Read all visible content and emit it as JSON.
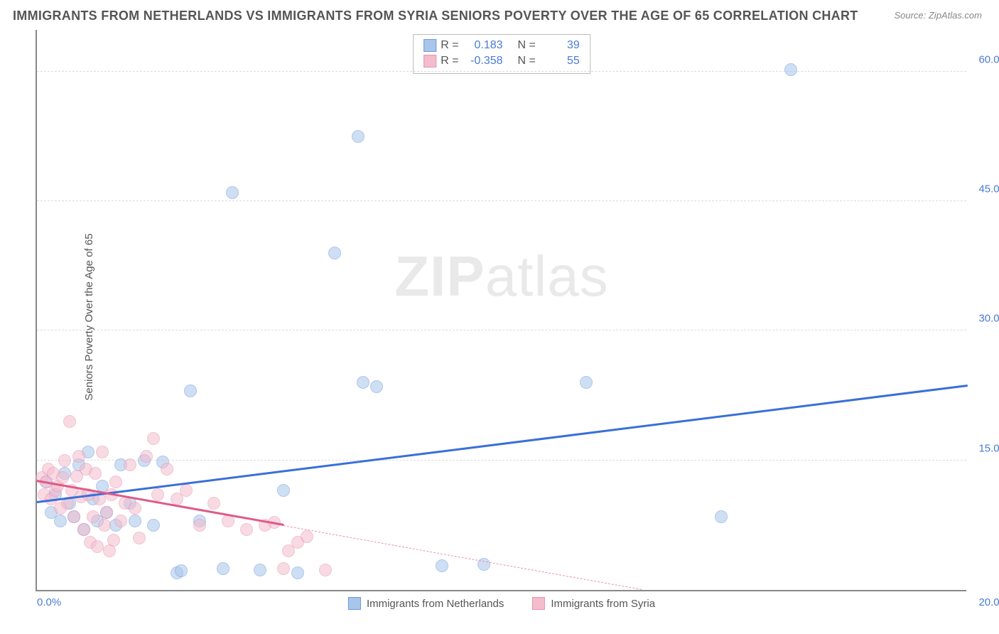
{
  "title": "IMMIGRANTS FROM NETHERLANDS VS IMMIGRANTS FROM SYRIA SENIORS POVERTY OVER THE AGE OF 65 CORRELATION CHART",
  "source_prefix": "Source: ",
  "source": "ZipAtlas.com",
  "ylabel": "Seniors Poverty Over the Age of 65",
  "watermark_bold": "ZIP",
  "watermark_rest": "atlas",
  "chart": {
    "type": "scatter",
    "xlim": [
      0,
      20
    ],
    "ylim": [
      0,
      65
    ],
    "yticks": [
      15,
      30,
      45,
      60
    ],
    "ytick_labels": [
      "15.0%",
      "30.0%",
      "45.0%",
      "60.0%"
    ],
    "xticks": [
      0,
      20
    ],
    "xtick_labels": [
      "0.0%",
      "20.0%"
    ],
    "background_color": "#ffffff",
    "grid_color": "#dddddd",
    "marker_radius": 9,
    "marker_opacity": 0.55,
    "trend_width": 3
  },
  "series": [
    {
      "name": "Immigrants from Netherlands",
      "color_fill": "#a8c5ea",
      "color_stroke": "#6b9be0",
      "trend_color": "#3a6fd8",
      "R": "0.183",
      "N": "39",
      "trend": {
        "x1": 0,
        "y1": 10.0,
        "x2": 20,
        "y2": 23.5
      },
      "points": [
        [
          0.2,
          12.5
        ],
        [
          0.3,
          9.0
        ],
        [
          0.4,
          11.0
        ],
        [
          0.5,
          8.0
        ],
        [
          0.6,
          13.5
        ],
        [
          0.7,
          10.0
        ],
        [
          0.8,
          8.5
        ],
        [
          0.9,
          14.5
        ],
        [
          1.0,
          7.0
        ],
        [
          1.1,
          16.0
        ],
        [
          1.2,
          10.5
        ],
        [
          1.3,
          8.0
        ],
        [
          1.4,
          12.0
        ],
        [
          1.5,
          9.0
        ],
        [
          1.7,
          7.5
        ],
        [
          1.8,
          14.5
        ],
        [
          2.0,
          10.0
        ],
        [
          2.1,
          8.0
        ],
        [
          2.3,
          15.0
        ],
        [
          2.5,
          7.5
        ],
        [
          2.7,
          14.8
        ],
        [
          3.0,
          2.0
        ],
        [
          3.1,
          2.2
        ],
        [
          3.3,
          23.0
        ],
        [
          3.5,
          8.0
        ],
        [
          4.0,
          2.5
        ],
        [
          4.2,
          46.0
        ],
        [
          4.8,
          2.3
        ],
        [
          5.3,
          11.5
        ],
        [
          5.6,
          2.0
        ],
        [
          6.4,
          39.0
        ],
        [
          6.9,
          52.5
        ],
        [
          7.0,
          24.0
        ],
        [
          7.3,
          23.5
        ],
        [
          8.7,
          2.8
        ],
        [
          9.6,
          3.0
        ],
        [
          11.8,
          24.0
        ],
        [
          14.7,
          8.5
        ],
        [
          16.2,
          60.2
        ]
      ]
    },
    {
      "name": "Immigrants from Syria",
      "color_fill": "#f4bccd",
      "color_stroke": "#e893b0",
      "trend_color": "#e05a88",
      "R": "-0.358",
      "N": "55",
      "trend_dashed_after_x": 5.3,
      "trend": {
        "x1": 0,
        "y1": 12.5,
        "x2": 13.0,
        "y2": 0.0
      },
      "points": [
        [
          0.1,
          13.0
        ],
        [
          0.15,
          11.0
        ],
        [
          0.2,
          12.5
        ],
        [
          0.25,
          14.0
        ],
        [
          0.3,
          10.5
        ],
        [
          0.35,
          13.5
        ],
        [
          0.4,
          11.5
        ],
        [
          0.45,
          12.0
        ],
        [
          0.5,
          9.5
        ],
        [
          0.55,
          13.0
        ],
        [
          0.6,
          15.0
        ],
        [
          0.65,
          10.0
        ],
        [
          0.7,
          19.5
        ],
        [
          0.75,
          11.5
        ],
        [
          0.8,
          8.5
        ],
        [
          0.85,
          13.2
        ],
        [
          0.9,
          15.5
        ],
        [
          0.95,
          10.8
        ],
        [
          1.0,
          7.0
        ],
        [
          1.05,
          14.0
        ],
        [
          1.1,
          11.0
        ],
        [
          1.15,
          5.5
        ],
        [
          1.2,
          8.5
        ],
        [
          1.25,
          13.5
        ],
        [
          1.3,
          5.0
        ],
        [
          1.35,
          10.5
        ],
        [
          1.4,
          16.0
        ],
        [
          1.45,
          7.5
        ],
        [
          1.5,
          9.0
        ],
        [
          1.55,
          4.5
        ],
        [
          1.6,
          11.0
        ],
        [
          1.65,
          5.8
        ],
        [
          1.7,
          12.5
        ],
        [
          1.8,
          8.0
        ],
        [
          1.9,
          10.0
        ],
        [
          2.0,
          14.5
        ],
        [
          2.1,
          9.5
        ],
        [
          2.2,
          6.0
        ],
        [
          2.35,
          15.5
        ],
        [
          2.5,
          17.5
        ],
        [
          2.6,
          11.0
        ],
        [
          2.8,
          14.0
        ],
        [
          3.0,
          10.5
        ],
        [
          3.2,
          11.5
        ],
        [
          3.5,
          7.5
        ],
        [
          3.8,
          10.0
        ],
        [
          4.1,
          8.0
        ],
        [
          4.5,
          7.0
        ],
        [
          4.9,
          7.5
        ],
        [
          5.1,
          7.8
        ],
        [
          5.3,
          2.5
        ],
        [
          5.4,
          4.5
        ],
        [
          5.6,
          5.5
        ],
        [
          5.8,
          6.2
        ],
        [
          6.2,
          2.3
        ]
      ]
    }
  ],
  "stat_legend": {
    "r_label": "R =",
    "n_label": "N ="
  },
  "bottom_legend_label_0": "Immigrants from Netherlands",
  "bottom_legend_label_1": "Immigrants from Syria"
}
